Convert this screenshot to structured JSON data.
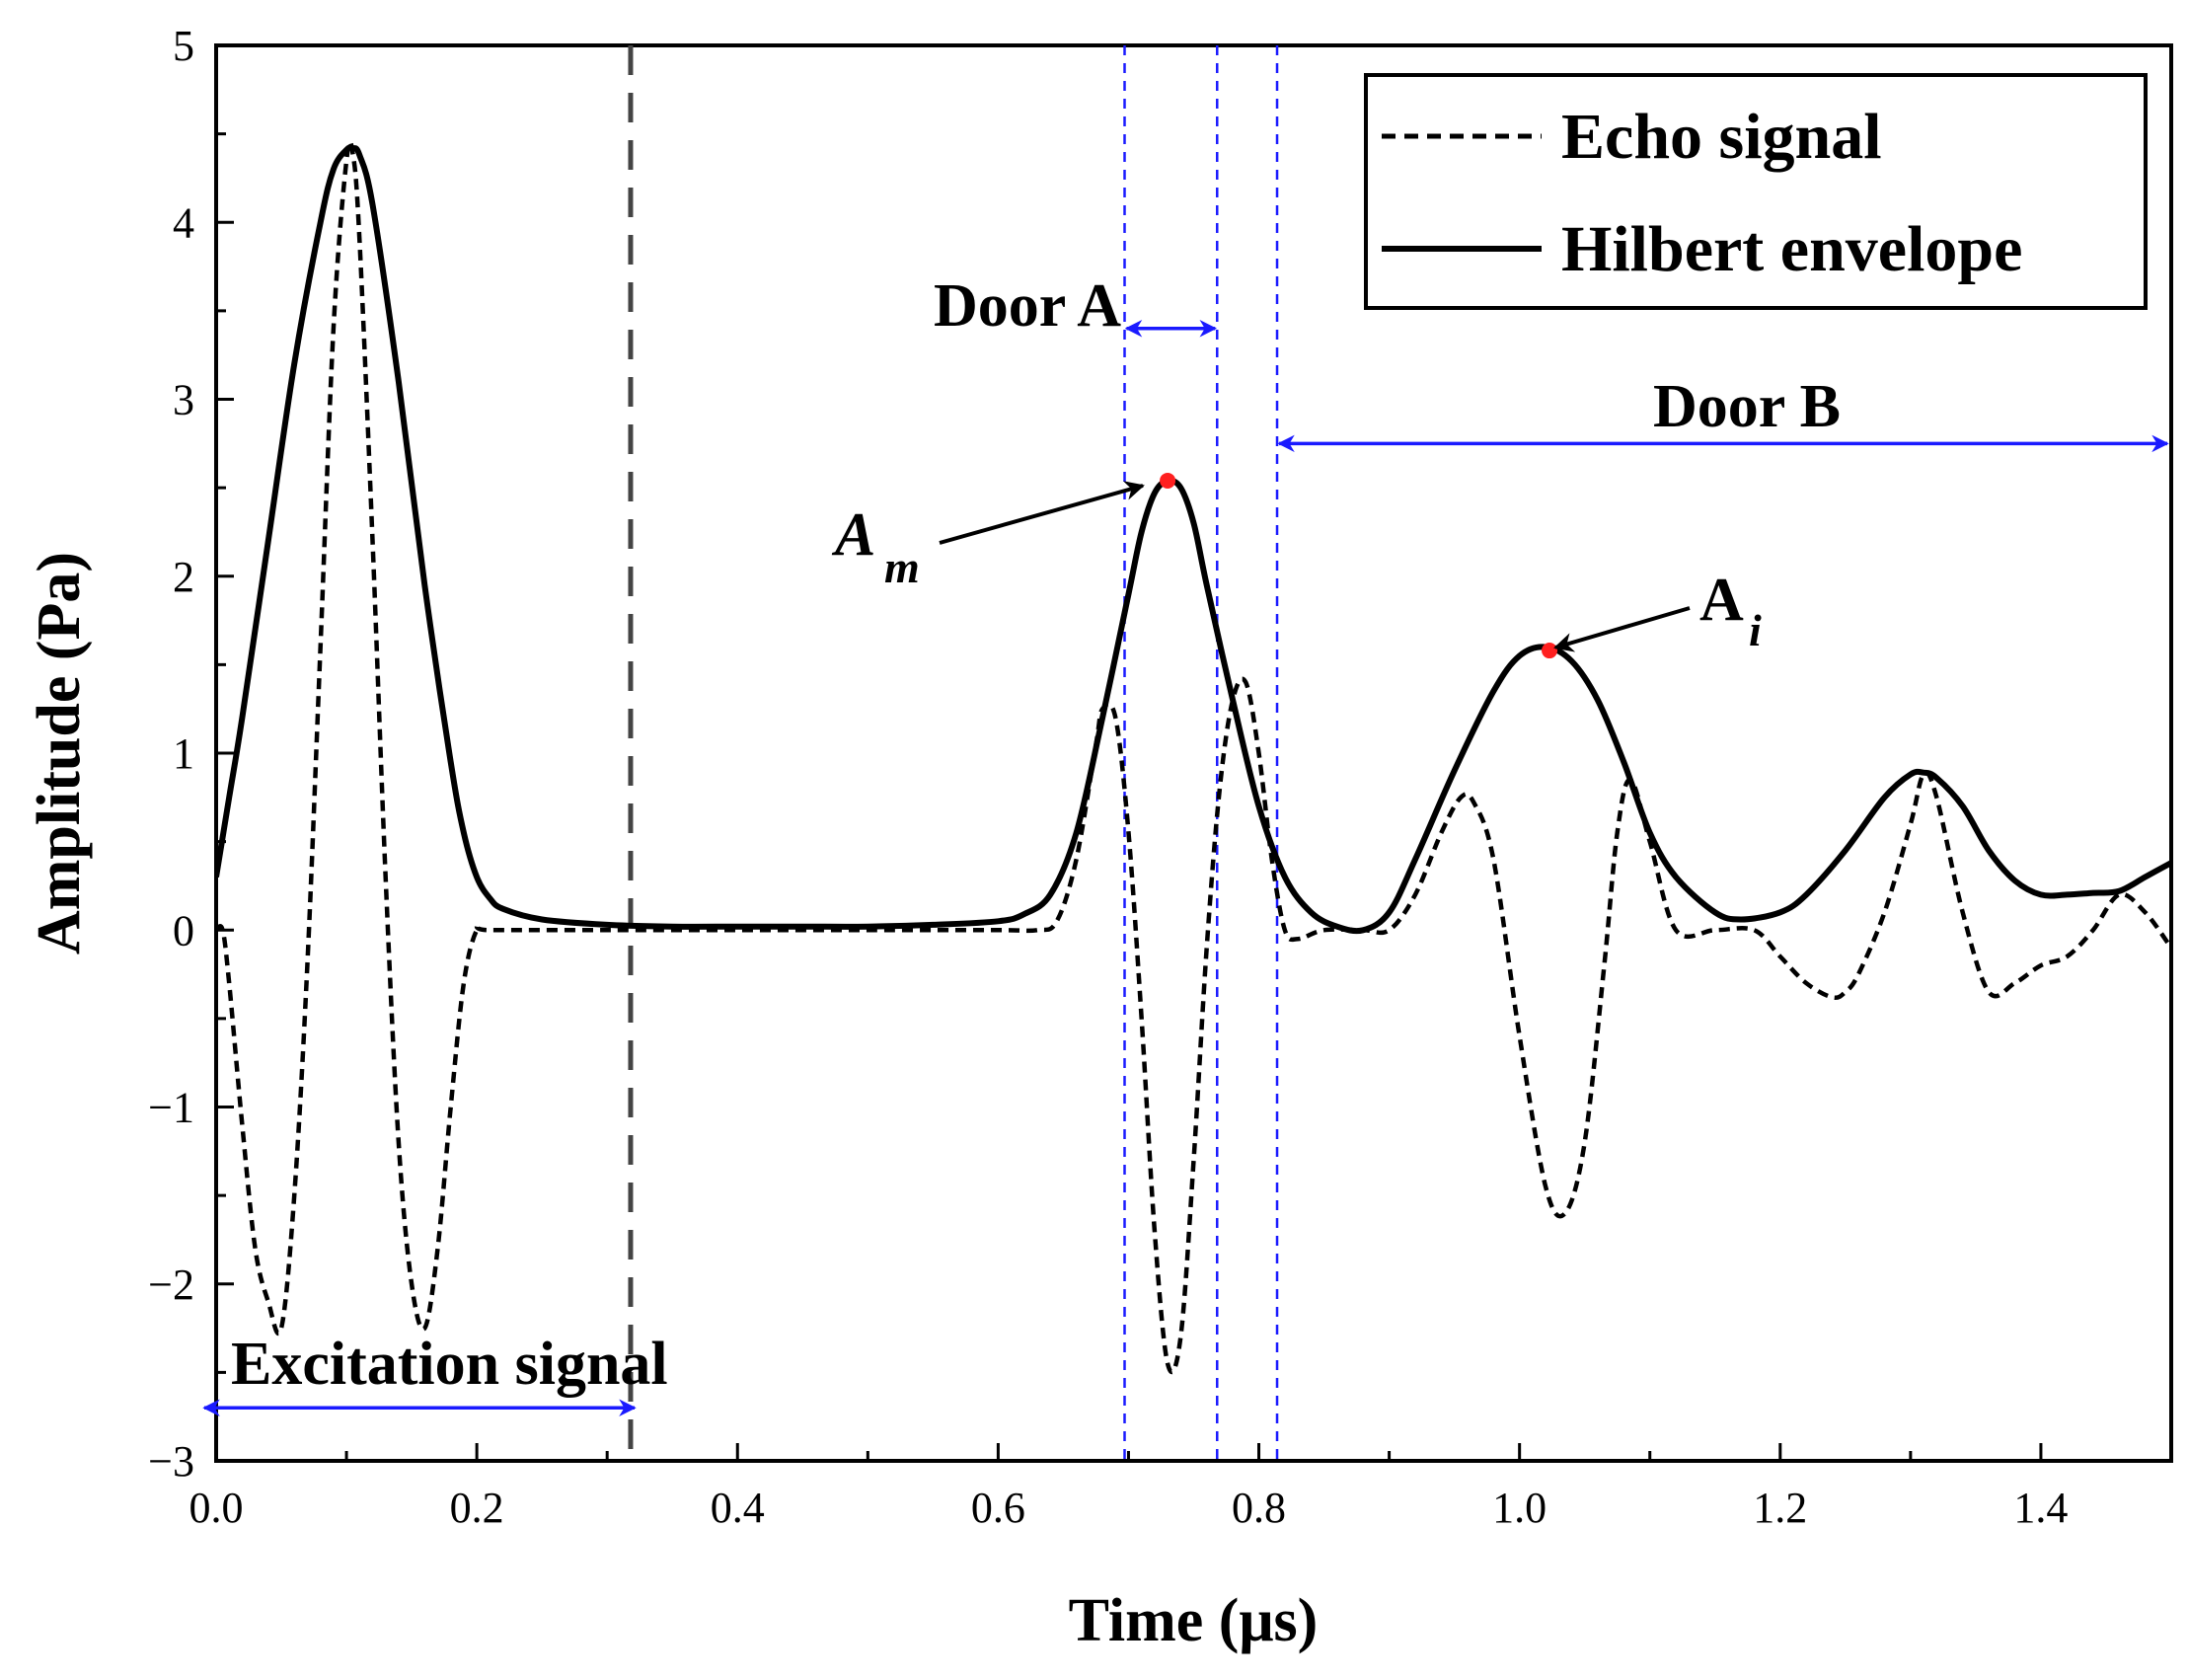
{
  "chart_data": {
    "type": "line",
    "title": "",
    "xlabel": "Time (μs)",
    "ylabel": "Amplitude (Pa)",
    "xlim": [
      0.0,
      1.5
    ],
    "ylim": [
      -3,
      5
    ],
    "x_ticks": [
      0.0,
      0.2,
      0.4,
      0.6,
      0.8,
      1.0,
      1.2,
      1.4
    ],
    "x_tick_labels": [
      "0.0",
      "0.2",
      "0.4",
      "0.6",
      "0.8",
      "1.0",
      "1.2",
      "1.4"
    ],
    "y_ticks": [
      -3,
      -2,
      -1,
      0,
      1,
      2,
      3,
      4,
      5
    ],
    "y_tick_labels": [
      "−3",
      "−2",
      "−1",
      "0",
      "1",
      "2",
      "3",
      "4",
      "5"
    ],
    "grid": false,
    "legend_position": "top-right",
    "series": [
      {
        "name": "Echo signal",
        "style": "dashed",
        "color": "#000000",
        "x": [
          0.0,
          0.005,
          0.01,
          0.02,
          0.03,
          0.04,
          0.05,
          0.06,
          0.07,
          0.08,
          0.09,
          0.1,
          0.105,
          0.11,
          0.12,
          0.13,
          0.14,
          0.15,
          0.16,
          0.17,
          0.18,
          0.19,
          0.2,
          0.21,
          0.3,
          0.4,
          0.5,
          0.6,
          0.63,
          0.645,
          0.66,
          0.675,
          0.68,
          0.69,
          0.7,
          0.71,
          0.72,
          0.73,
          0.74,
          0.75,
          0.76,
          0.77,
          0.78,
          0.79,
          0.8,
          0.81,
          0.82,
          0.83,
          0.85,
          0.88,
          0.9,
          0.92,
          0.94,
          0.955,
          0.965,
          0.98,
          1.0,
          1.02,
          1.035,
          1.05,
          1.065,
          1.075,
          1.085,
          1.1,
          1.12,
          1.15,
          1.18,
          1.2,
          1.22,
          1.24,
          1.25,
          1.26,
          1.28,
          1.3,
          1.31,
          1.32,
          1.34,
          1.36,
          1.38,
          1.4,
          1.42,
          1.44,
          1.46,
          1.48,
          1.5
        ],
        "y": [
          0.0,
          0.0,
          -0.3,
          -1.1,
          -1.8,
          -2.1,
          -2.25,
          -1.5,
          -0.2,
          1.6,
          3.4,
          4.35,
          4.38,
          3.9,
          2.2,
          0.3,
          -1.2,
          -2.0,
          -2.25,
          -1.8,
          -1.0,
          -0.3,
          0.0,
          0.0,
          0.0,
          0.0,
          0.0,
          0.0,
          0.0,
          0.05,
          0.4,
          1.05,
          1.25,
          1.2,
          0.55,
          -0.5,
          -1.7,
          -2.45,
          -2.3,
          -1.3,
          -0.1,
          0.8,
          1.3,
          1.4,
          1.0,
          0.4,
          0.0,
          -0.05,
          0.0,
          0.0,
          0.0,
          0.2,
          0.55,
          0.75,
          0.72,
          0.4,
          -0.6,
          -1.45,
          -1.6,
          -1.2,
          -0.2,
          0.55,
          0.85,
          0.5,
          0.0,
          0.0,
          0.0,
          -0.15,
          -0.3,
          -0.38,
          -0.35,
          -0.25,
          0.1,
          0.6,
          0.88,
          0.75,
          0.1,
          -0.35,
          -0.3,
          -0.2,
          -0.15,
          0.0,
          0.2,
          0.1,
          -0.1
        ]
      },
      {
        "name": "Hilbert envelope",
        "style": "solid",
        "color": "#000000",
        "x": [
          0.0,
          0.01,
          0.02,
          0.04,
          0.06,
          0.08,
          0.09,
          0.1,
          0.105,
          0.11,
          0.12,
          0.14,
          0.16,
          0.18,
          0.19,
          0.2,
          0.21,
          0.22,
          0.25,
          0.3,
          0.35,
          0.4,
          0.45,
          0.5,
          0.55,
          0.6,
          0.62,
          0.64,
          0.66,
          0.68,
          0.7,
          0.71,
          0.72,
          0.73,
          0.74,
          0.75,
          0.76,
          0.78,
          0.8,
          0.82,
          0.84,
          0.86,
          0.88,
          0.9,
          0.92,
          0.95,
          0.98,
          1.0,
          1.02,
          1.04,
          1.06,
          1.08,
          1.1,
          1.12,
          1.15,
          1.17,
          1.2,
          1.22,
          1.25,
          1.28,
          1.3,
          1.31,
          1.32,
          1.34,
          1.36,
          1.38,
          1.4,
          1.42,
          1.44,
          1.46,
          1.48,
          1.5
        ],
        "y": [
          0.3,
          0.75,
          1.2,
          2.2,
          3.2,
          4.0,
          4.3,
          4.41,
          4.42,
          4.38,
          4.1,
          3.1,
          1.95,
          0.95,
          0.55,
          0.3,
          0.18,
          0.12,
          0.06,
          0.03,
          0.02,
          0.02,
          0.02,
          0.02,
          0.03,
          0.05,
          0.09,
          0.2,
          0.55,
          1.2,
          1.9,
          2.25,
          2.47,
          2.54,
          2.5,
          2.3,
          1.95,
          1.3,
          0.7,
          0.3,
          0.1,
          0.02,
          0.0,
          0.1,
          0.4,
          0.9,
          1.35,
          1.55,
          1.6,
          1.52,
          1.3,
          0.95,
          0.55,
          0.3,
          0.1,
          0.06,
          0.1,
          0.2,
          0.45,
          0.75,
          0.88,
          0.89,
          0.86,
          0.7,
          0.45,
          0.28,
          0.2,
          0.2,
          0.21,
          0.22,
          0.3,
          0.38
        ]
      }
    ],
    "reference_lines": [
      {
        "name": "excitation-end-line",
        "x": 0.318,
        "style": "long-dash",
        "color": "#444444"
      },
      {
        "name": "door-a-start-line",
        "x": 0.697,
        "style": "dashed",
        "color": "#1a1aff"
      },
      {
        "name": "door-a-end-line",
        "x": 0.768,
        "style": "dashed",
        "color": "#1a1aff"
      },
      {
        "name": "door-b-start-line",
        "x": 0.814,
        "style": "dashed",
        "color": "#1a1aff"
      }
    ],
    "markers": [
      {
        "name": "am-point",
        "x": 0.73,
        "y": 2.54,
        "color": "#ff2020"
      },
      {
        "name": "ai-point",
        "x": 1.023,
        "y": 1.58,
        "color": "#ff2020"
      }
    ],
    "spans": [
      {
        "name": "door-a-span",
        "label": "Door A",
        "x0": 0.697,
        "x1": 0.768,
        "y": 3.4,
        "color": "#1a1aff"
      },
      {
        "name": "door-b-span",
        "label": "Door B",
        "x0": 0.814,
        "x1": 1.5,
        "y": 2.75,
        "color": "#1a1aff"
      },
      {
        "name": "excitation-span",
        "label": "Excitation signal",
        "x0": 0.0,
        "x1": 0.318,
        "y": -2.7,
        "color": "#1a1aff"
      }
    ],
    "annotations": {
      "am": {
        "label": "A",
        "sub": "m"
      },
      "ai": {
        "label": "A",
        "sub": "i"
      }
    }
  }
}
